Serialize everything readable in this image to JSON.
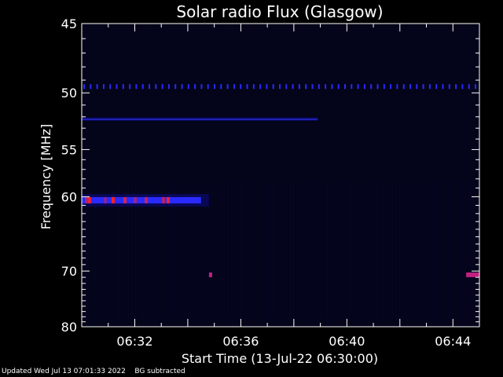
{
  "chart_data": {
    "type": "heatmap",
    "title": "Solar radio Flux (Glasgow)",
    "xlabel": "Start Time (13-Jul-22 06:30:00)",
    "ylabel": "Frequency [MHz]",
    "x_range_minutes": [
      0,
      15
    ],
    "x_ticks": [
      {
        "minute": 2,
        "label": "06:32"
      },
      {
        "minute": 6,
        "label": "06:36"
      },
      {
        "minute": 10,
        "label": "06:40"
      },
      {
        "minute": 14,
        "label": "06:44"
      }
    ],
    "y_range_mhz": [
      45,
      80
    ],
    "y_ticks": [
      45,
      50,
      55,
      60,
      70,
      80
    ],
    "colors": {
      "background": "#000000",
      "plot_background": "#04041a",
      "low": "#0a0a6e",
      "mid": "#2a2aff",
      "high": "#ff2020"
    },
    "features": [
      {
        "name": "periodic-interference",
        "freq_mhz": 49.5,
        "start_min": 0,
        "end_min": 15
      },
      {
        "name": "continuous-band",
        "freq_mhz": 52.2,
        "start_min": 0,
        "end_min": 8.9
      },
      {
        "name": "strong-band",
        "freq_mhz": 60.4,
        "start_min": 0,
        "end_min": 4.5
      },
      {
        "name": "burst-spot",
        "freq_mhz": 70.6,
        "start_min": 4.8,
        "end_min": 4.9
      },
      {
        "name": "burst-spot-late",
        "freq_mhz": 70.6,
        "start_min": 14.5,
        "end_min": 15
      }
    ]
  },
  "footer": {
    "updated": "Updated Wed Jul 13 07:01:33 2022",
    "note": "BG subtracted"
  }
}
